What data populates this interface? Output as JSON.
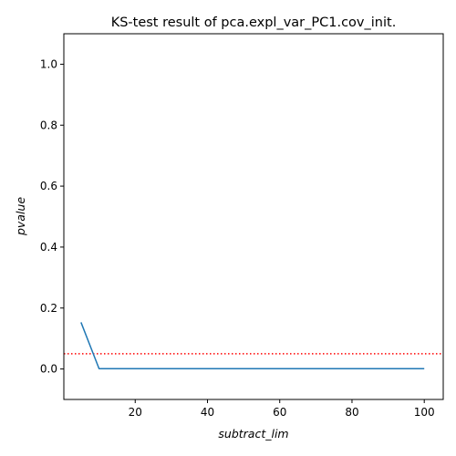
{
  "chart_data": {
    "type": "line",
    "title": "KS-test result of pca.expl_var_PC1.cov_init.",
    "xlabel": "subtract_lim",
    "ylabel": "pvalue",
    "xlim": [
      0.25,
      105.25
    ],
    "ylim": [
      -0.1,
      1.1
    ],
    "xticks": [
      20,
      40,
      60,
      80,
      100
    ],
    "xtick_labels": [
      "20",
      "40",
      "60",
      "80",
      "100"
    ],
    "yticks": [
      0.0,
      0.2,
      0.4,
      0.6,
      0.8,
      1.0
    ],
    "ytick_labels": [
      "0.0",
      "0.2",
      "0.4",
      "0.6",
      "0.8",
      "1.0"
    ],
    "grid": false,
    "series": [
      {
        "color": "#1f77b4",
        "x": [
          5,
          10,
          15,
          20,
          25,
          30,
          35,
          40,
          45,
          50,
          55,
          60,
          65,
          70,
          75,
          80,
          85,
          90,
          95,
          100
        ],
        "y": [
          0.153,
          0.001,
          0.001,
          0.001,
          0.001,
          0.001,
          0.001,
          0.001,
          0.001,
          0.001,
          0.001,
          0.001,
          0.001,
          0.001,
          0.001,
          0.001,
          0.001,
          0.001,
          0.001,
          0.001
        ]
      }
    ],
    "reference_line": {
      "y": 0.05,
      "color": "#ff0000",
      "style": "dotted"
    }
  }
}
